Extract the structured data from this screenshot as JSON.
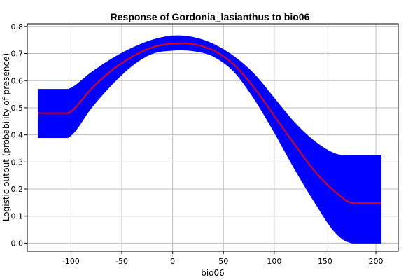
{
  "chart_data": {
    "type": "line",
    "title": "Response of Gordonia_lasianthus to bio06",
    "xlabel": "bio06",
    "ylabel": "Logistic output (probability of presence)",
    "xlim": [
      -143,
      222
    ],
    "ylim": [
      -0.03,
      0.81
    ],
    "xticks": [
      -100,
      -50,
      0,
      50,
      100,
      150,
      200
    ],
    "yticks": [
      0.0,
      0.1,
      0.2,
      0.3,
      0.4,
      0.5,
      0.6,
      0.7,
      0.8
    ],
    "xtick_labels": [
      "-100",
      "-50",
      "0",
      "50",
      "100",
      "150",
      "200"
    ],
    "ytick_labels": [
      "0.0",
      "0.1",
      "0.2",
      "0.3",
      "0.4",
      "0.5",
      "0.6",
      "0.7",
      "0.8"
    ],
    "grid": true,
    "x": [
      -132,
      -103,
      -80,
      -60,
      -40,
      -20,
      0,
      20,
      40,
      60,
      80,
      100,
      120,
      140,
      160,
      177,
      205
    ],
    "series": [
      {
        "role": "mean",
        "color": "#e8000b",
        "values": [
          0.48,
          0.48,
          0.57,
          0.638,
          0.688,
          0.723,
          0.737,
          0.735,
          0.712,
          0.66,
          0.575,
          0.47,
          0.365,
          0.265,
          0.19,
          0.148,
          0.148
        ]
      },
      {
        "role": "upper",
        "color": "#0000ff",
        "values": [
          0.568,
          0.568,
          0.63,
          0.68,
          0.72,
          0.75,
          0.765,
          0.76,
          0.735,
          0.69,
          0.625,
          0.535,
          0.445,
          0.375,
          0.33,
          0.325,
          0.325
        ]
      },
      {
        "role": "lower",
        "color": "#0000ff",
        "values": [
          0.39,
          0.39,
          0.5,
          0.585,
          0.655,
          0.7,
          0.712,
          0.71,
          0.69,
          0.635,
          0.535,
          0.41,
          0.275,
          0.15,
          0.04,
          0.0,
          0.0
        ]
      }
    ]
  }
}
